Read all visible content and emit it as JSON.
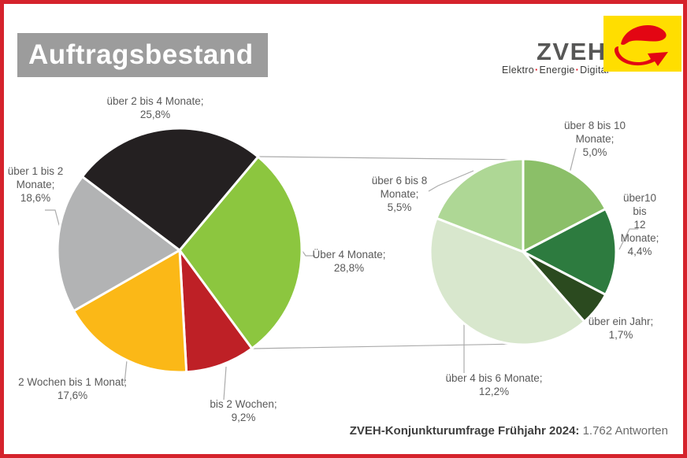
{
  "title": "Auftragsbestand",
  "logo": {
    "name": "ZVEH",
    "tagline_parts": [
      "Elektro",
      "Energie",
      "Digital"
    ],
    "separator": "·",
    "accent_color": "#E30613",
    "box_color": "#FFDE00"
  },
  "footer": {
    "source_label": "ZVEH-Konjunkturumfrage Frühjahr 2024:",
    "responses": "1.762 Antworten"
  },
  "chart_data": [
    {
      "type": "pie",
      "title": "Auftragsbestand",
      "unit": "%",
      "start_angle_deg": 40,
      "direction": "clockwise",
      "categories": [
        "Über 4 Monate",
        "bis 2 Wochen",
        "2 Wochen bis 1 Monat",
        "über 1 bis 2 Monate",
        "über 2 bis 4 Monate"
      ],
      "values": [
        28.8,
        9.2,
        17.6,
        18.6,
        25.8
      ],
      "colors": [
        "#8CC63F",
        "#BE2026",
        "#FBB817",
        "#B2B3B4",
        "#242021"
      ],
      "legend_position": "none",
      "grid": false
    },
    {
      "type": "pie",
      "title": "",
      "unit": "%",
      "start_angle_deg": 0,
      "direction": "clockwise",
      "categories": [
        "über 8 bis 10 Monate",
        "über10 bis 12 Monate",
        "über ein Jahr",
        "über 4 bis 6 Monate",
        "über 6 bis 8 Monate"
      ],
      "values": [
        5.0,
        4.4,
        1.7,
        12.2,
        5.5
      ],
      "colors": [
        "#8BBF68",
        "#2D7B3F",
        "#2B4A1F",
        "#D8E7CD",
        "#AED795"
      ],
      "legend_position": "none",
      "grid": false
    }
  ],
  "callouts": [
    {
      "id": "ueber-2-bis-4-monate",
      "text": "über 2 bis 4 Monate;\n25,8%"
    },
    {
      "id": "ueber-1-bis-2-monate",
      "text": "über 1 bis 2\nMonate;\n18,6%"
    },
    {
      "id": "ueber-4-monate",
      "text": "Über 4 Monate;\n28,8%"
    },
    {
      "id": "2-wochen-bis-1-monat",
      "text": "2 Wochen bis 1 Monat;\n17,6%"
    },
    {
      "id": "bis-2-wochen",
      "text": "bis 2 Wochen;\n9,2%"
    },
    {
      "id": "ueber-6-bis-8-monate",
      "text": "über 6 bis 8\nMonate;\n5,5%"
    },
    {
      "id": "ueber-8-bis-10-monate",
      "text": "über 8 bis 10 Monate;\n5,0%"
    },
    {
      "id": "ueber-10-bis-12-monate",
      "text": "über10 bis\n12 Monate;\n4,4%"
    },
    {
      "id": "ueber-ein-jahr",
      "text": "über ein Jahr;\n1,7%"
    },
    {
      "id": "ueber-4-bis-6-monate",
      "text": "über 4 bis 6 Monate;\n12,2%"
    }
  ]
}
